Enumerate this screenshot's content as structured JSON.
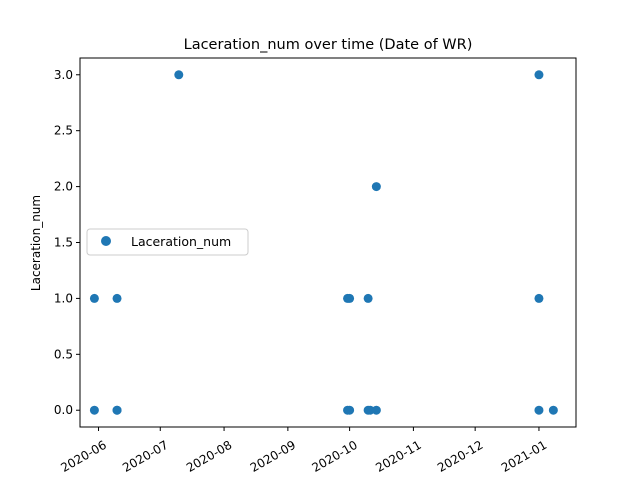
{
  "chart_data": {
    "type": "scatter",
    "title": "Laceration_num over time (Date of WR)",
    "xlabel": "",
    "ylabel": "Laceration_num",
    "x_type": "date",
    "xlim": [
      "2020-05-23",
      "2021-01-19"
    ],
    "ylim": [
      -0.15,
      3.15
    ],
    "x_ticks": [
      "2020-06",
      "2020-07",
      "2020-08",
      "2020-09",
      "2020-10",
      "2020-11",
      "2020-12",
      "2021-01"
    ],
    "y_ticks": [
      "0.0",
      "0.5",
      "1.0",
      "1.5",
      "2.0",
      "2.5",
      "3.0"
    ],
    "legend": {
      "position": "center-left",
      "entries": [
        "Laceration_num"
      ]
    },
    "grid": false,
    "colors": {
      "series": "#1f77b4"
    },
    "series": [
      {
        "name": "Laceration_num",
        "points": [
          {
            "x": "2020-05-30",
            "y": 1
          },
          {
            "x": "2020-05-30",
            "y": 0
          },
          {
            "x": "2020-06-10",
            "y": 1
          },
          {
            "x": "2020-06-10",
            "y": 0
          },
          {
            "x": "2020-06-10",
            "y": 0
          },
          {
            "x": "2020-07-10",
            "y": 3
          },
          {
            "x": "2020-09-30",
            "y": 1
          },
          {
            "x": "2020-10-01",
            "y": 1
          },
          {
            "x": "2020-09-30",
            "y": 0
          },
          {
            "x": "2020-10-01",
            "y": 0
          },
          {
            "x": "2020-10-10",
            "y": 1
          },
          {
            "x": "2020-10-10",
            "y": 0
          },
          {
            "x": "2020-10-11",
            "y": 0
          },
          {
            "x": "2020-10-14",
            "y": 2
          },
          {
            "x": "2020-10-14",
            "y": 0
          },
          {
            "x": "2021-01-01",
            "y": 3
          },
          {
            "x": "2021-01-01",
            "y": 1
          },
          {
            "x": "2021-01-01",
            "y": 0
          },
          {
            "x": "2021-01-08",
            "y": 0
          }
        ]
      }
    ]
  }
}
